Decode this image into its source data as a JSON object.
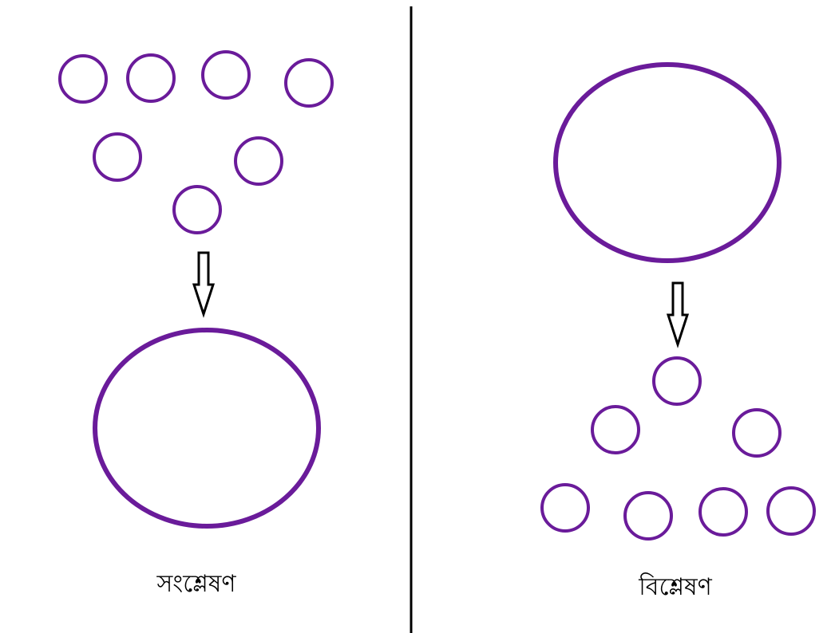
{
  "colors": {
    "circle_stroke": "#6a1b9a",
    "arrow_stroke": "#000000",
    "divider": "#000000",
    "background": "#ffffff"
  },
  "left_panel": {
    "label": "সংশ্লেষণ",
    "small_circle_count": 7,
    "large_circle_count": 1,
    "arrow_direction": "down"
  },
  "right_panel": {
    "label": "বিশ্লেষণ",
    "small_circle_count": 7,
    "large_circle_count": 1,
    "arrow_direction": "down"
  }
}
